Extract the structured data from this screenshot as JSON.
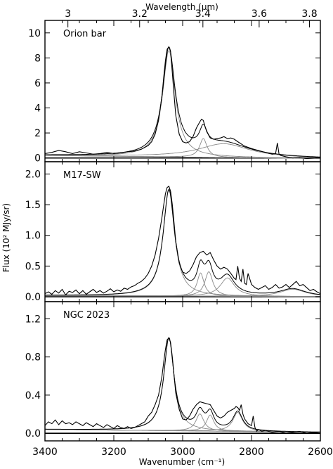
{
  "chart_data": {
    "type": "line",
    "xlabel": "Wavenumber (cm⁻¹)",
    "x_ticks": [
      3400,
      3200,
      3000,
      2800,
      2600
    ],
    "xlim": [
      3400,
      2600
    ],
    "top_axis": {
      "label": "Wavelength (μm)",
      "ticks": [
        3,
        3.2,
        3.4,
        3.6,
        3.8
      ],
      "tick_labels": [
        "3",
        "3.2",
        "3.4",
        "3.6",
        "3.8"
      ]
    },
    "ylabel": "Flux (10² MJy/sr)",
    "panels": [
      {
        "label": "Orion bar",
        "ylim": [
          -0.3,
          11
        ],
        "y_ticks": [
          0,
          2,
          4,
          6,
          8,
          10
        ],
        "y_tick_labels": [
          "0",
          "2",
          "4",
          "6",
          "8",
          "10"
        ],
        "components": [
          {
            "center": 3040,
            "width": 22,
            "amp": 8.5
          },
          {
            "center": 2940,
            "width": 13,
            "amp": 1.5
          },
          {
            "center": 2880,
            "width": 90,
            "amp": 1.1
          }
        ],
        "continuum": {
          "left": 0.2,
          "right": -0.05
        },
        "spectrum": {
          "x": [
            3400,
            3380,
            3360,
            3340,
            3320,
            3300,
            3280,
            3260,
            3240,
            3220,
            3200,
            3180,
            3160,
            3140,
            3120,
            3100,
            3090,
            3080,
            3070,
            3060,
            3055,
            3050,
            3045,
            3040,
            3035,
            3030,
            3025,
            3020,
            3010,
            3000,
            2990,
            2980,
            2970,
            2960,
            2950,
            2945,
            2940,
            2935,
            2930,
            2920,
            2910,
            2900,
            2890,
            2880,
            2870,
            2860,
            2850,
            2840,
            2820,
            2800,
            2780,
            2760,
            2740,
            2730,
            2725,
            2720,
            2715,
            2700,
            2680,
            2660,
            2640,
            2620,
            2600
          ],
          "y": [
            0.35,
            0.45,
            0.6,
            0.5,
            0.35,
            0.5,
            0.4,
            0.3,
            0.35,
            0.45,
            0.35,
            0.4,
            0.5,
            0.55,
            0.7,
            1.0,
            1.3,
            1.9,
            3.0,
            5.0,
            6.5,
            7.8,
            8.7,
            8.9,
            8.5,
            6.8,
            5.0,
            3.4,
            1.9,
            1.3,
            1.2,
            1.3,
            1.7,
            2.4,
            2.9,
            3.1,
            3.0,
            2.5,
            2.1,
            1.6,
            1.5,
            1.55,
            1.6,
            1.7,
            1.55,
            1.6,
            1.5,
            1.3,
            0.95,
            0.75,
            0.6,
            0.45,
            0.3,
            0.35,
            1.2,
            0.3,
            0.2,
            0.1,
            0.0,
            0.05,
            -0.05,
            0.0,
            0.05
          ]
        }
      },
      {
        "label": "M17-SW",
        "ylim": [
          -0.08,
          2.2
        ],
        "y_ticks": [
          0.0,
          0.5,
          1.0,
          1.5,
          2.0
        ],
        "y_tick_labels": [
          "0.0",
          "0.5",
          "1.0",
          "1.5",
          "2.0"
        ],
        "components": [
          {
            "center": 3040,
            "width": 20,
            "amp": 1.72
          },
          {
            "center": 2948,
            "width": 12,
            "amp": 0.38
          },
          {
            "center": 2924,
            "width": 14,
            "amp": 0.4
          },
          {
            "center": 2870,
            "width": 25,
            "amp": 0.3
          },
          {
            "center": 2680,
            "width": 45,
            "amp": 0.12
          }
        ],
        "continuum": {
          "left": 0.02,
          "right": 0.0
        },
        "spectrum": {
          "x": [
            3400,
            3390,
            3380,
            3370,
            3360,
            3350,
            3340,
            3330,
            3320,
            3310,
            3300,
            3290,
            3280,
            3270,
            3260,
            3250,
            3240,
            3230,
            3220,
            3210,
            3200,
            3190,
            3180,
            3170,
            3160,
            3150,
            3140,
            3130,
            3120,
            3110,
            3100,
            3090,
            3080,
            3070,
            3060,
            3055,
            3050,
            3045,
            3040,
            3035,
            3030,
            3025,
            3020,
            3010,
            3000,
            2990,
            2980,
            2970,
            2960,
            2950,
            2940,
            2930,
            2920,
            2910,
            2900,
            2890,
            2880,
            2870,
            2860,
            2850,
            2845,
            2840,
            2835,
            2830,
            2825,
            2820,
            2815,
            2810,
            2800,
            2790,
            2780,
            2770,
            2760,
            2750,
            2740,
            2730,
            2720,
            2710,
            2700,
            2690,
            2680,
            2670,
            2660,
            2650,
            2640,
            2630,
            2620,
            2610,
            2600
          ],
          "y": [
            0.05,
            0.08,
            0.04,
            0.1,
            0.06,
            0.12,
            0.03,
            0.09,
            0.07,
            0.11,
            0.05,
            0.1,
            0.04,
            0.08,
            0.12,
            0.07,
            0.1,
            0.06,
            0.09,
            0.13,
            0.08,
            0.11,
            0.09,
            0.14,
            0.12,
            0.16,
            0.18,
            0.22,
            0.25,
            0.3,
            0.38,
            0.5,
            0.68,
            0.95,
            1.3,
            1.5,
            1.68,
            1.78,
            1.8,
            1.72,
            1.5,
            1.2,
            0.9,
            0.55,
            0.4,
            0.38,
            0.42,
            0.52,
            0.65,
            0.72,
            0.74,
            0.68,
            0.72,
            0.6,
            0.5,
            0.45,
            0.48,
            0.45,
            0.38,
            0.3,
            0.28,
            0.5,
            0.3,
            0.25,
            0.45,
            0.22,
            0.2,
            0.38,
            0.2,
            0.15,
            0.12,
            0.15,
            0.18,
            0.12,
            0.15,
            0.2,
            0.14,
            0.16,
            0.2,
            0.15,
            0.2,
            0.25,
            0.18,
            0.2,
            0.15,
            0.1,
            0.12,
            0.08,
            0.05
          ]
        }
      },
      {
        "label": "NGC 2023",
        "ylim": [
          -0.08,
          1.38
        ],
        "y_ticks": [
          0.0,
          0.4,
          0.8,
          1.2
        ],
        "y_tick_labels": [
          "0.0",
          "0.4",
          "0.8",
          "1.2"
        ],
        "components": [
          {
            "center": 3040,
            "width": 18,
            "amp": 0.97
          },
          {
            "center": 2950,
            "width": 14,
            "amp": 0.18
          },
          {
            "center": 2920,
            "width": 13,
            "amp": 0.17
          },
          {
            "center": 2840,
            "width": 17,
            "amp": 0.2
          }
        ],
        "continuum": {
          "left": 0.04,
          "right": 0.01
        },
        "spectrum": {
          "x": [
            3400,
            3390,
            3380,
            3370,
            3360,
            3350,
            3340,
            3330,
            3320,
            3310,
            3300,
            3290,
            3280,
            3270,
            3260,
            3250,
            3240,
            3230,
            3220,
            3210,
            3200,
            3190,
            3180,
            3170,
            3160,
            3150,
            3140,
            3130,
            3120,
            3110,
            3100,
            3090,
            3080,
            3070,
            3060,
            3055,
            3050,
            3045,
            3040,
            3035,
            3030,
            3025,
            3020,
            3010,
            3000,
            2990,
            2980,
            2970,
            2960,
            2950,
            2940,
            2930,
            2920,
            2910,
            2900,
            2890,
            2880,
            2870,
            2860,
            2850,
            2845,
            2840,
            2835,
            2830,
            2825,
            2820,
            2810,
            2800,
            2795,
            2790,
            2785,
            2780,
            2770,
            2760,
            2740,
            2720,
            2700,
            2680,
            2660,
            2640,
            2620,
            2600
          ],
          "y": [
            0.08,
            0.12,
            0.1,
            0.14,
            0.09,
            0.13,
            0.1,
            0.11,
            0.09,
            0.12,
            0.1,
            0.08,
            0.11,
            0.09,
            0.07,
            0.1,
            0.08,
            0.06,
            0.09,
            0.07,
            0.05,
            0.08,
            0.06,
            0.05,
            0.07,
            0.05,
            0.06,
            0.08,
            0.1,
            0.12,
            0.18,
            0.22,
            0.3,
            0.4,
            0.6,
            0.75,
            0.88,
            0.98,
            1.0,
            0.95,
            0.8,
            0.6,
            0.42,
            0.25,
            0.15,
            0.14,
            0.18,
            0.25,
            0.3,
            0.33,
            0.32,
            0.31,
            0.3,
            0.24,
            0.18,
            0.16,
            0.18,
            0.22,
            0.24,
            0.26,
            0.28,
            0.27,
            0.24,
            0.3,
            0.2,
            0.15,
            0.1,
            0.08,
            0.18,
            0.06,
            0.02,
            0.04,
            0.02,
            0.03,
            0.01,
            0.02,
            0.0,
            0.01,
            0.02,
            0.0,
            0.01,
            0.0
          ]
        }
      }
    ]
  }
}
